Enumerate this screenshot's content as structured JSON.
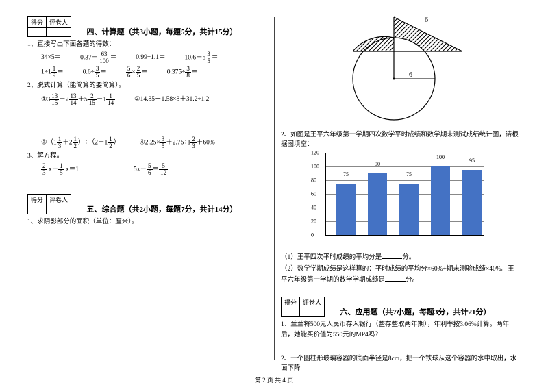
{
  "scorebox": {
    "c1": "得分",
    "c2": "评卷人"
  },
  "section4": {
    "title": "四、计算题（共3小题，每题5分，共计15分）",
    "q1": "1、直接写出下面各题的得数：",
    "row1": [
      "34×5＝",
      "0.37＋",
      "＝",
      "0.99÷1.1＝",
      "10.6－5",
      "＝"
    ],
    "row1_fracs": {
      "a_n": "63",
      "a_d": "100",
      "b_n": "3",
      "b_d": "5"
    },
    "row2": [
      "1÷1",
      "＝",
      "0.6÷",
      "＝",
      "×",
      "＝",
      "0.375÷",
      "＝"
    ],
    "row2_fracs": {
      "a_n": "1",
      "a_d": "9",
      "b_n": "3",
      "b_d": "5",
      "c1_n": "5",
      "c1_d": "6",
      "c2_n": "2",
      "c2_d": "5",
      "e_n": "3",
      "e_d": "8"
    },
    "q2": "2、脱式计算（能简算的要简算）。",
    "e21_label": "①3",
    "e21_f1_n": "13",
    "e21_f1_d": "15",
    "e21_mid": "－2",
    "e21_f2_n": "13",
    "e21_f2_d": "14",
    "e21_mid2": "＋5",
    "e21_f3_n": "2",
    "e21_f3_d": "15",
    "e21_mid3": "－1",
    "e21_f4_n": "1",
    "e21_f4_d": "14",
    "e22": "②14.85－1.58×8＋31.2÷1.2",
    "e23_label": "③（1",
    "e23_f1_n": "1",
    "e23_f1_d": "3",
    "e23_mid": "＋2",
    "e23_f2_n": "1",
    "e23_f2_d": "2",
    "e23_mid2": "）÷（2－1",
    "e23_f3_n": "1",
    "e23_f3_d": "2",
    "e23_end": "）",
    "e24_label": "④2.25×",
    "e24_f1_n": "3",
    "e24_f1_d": "5",
    "e24_mid": "＋2.75÷1",
    "e24_f2_n": "2",
    "e24_f2_d": "3",
    "e24_end": "＋60%",
    "q3": "3、解方程。",
    "eq1_f1_n": "2",
    "eq1_f1_d": "3",
    "eq1_mid": " x－",
    "eq1_f2_n": "1",
    "eq1_f2_d": "5",
    "eq1_end": " x＝1",
    "eq2_pre": "5x－",
    "eq2_f1_n": "5",
    "eq2_f1_d": "6",
    "eq2_mid": "＝",
    "eq2_f2_n": "5",
    "eq2_f2_d": "12"
  },
  "section5": {
    "title": "五、综合题（共2小题，每题7分，共计14分）",
    "q1": "1、求阴影部分的面积（单位：厘米）。",
    "geom": {
      "top_label": "6",
      "radius_label": "6"
    },
    "q2": "2、如图是王平六年级第一学期四次数学平时成绩和数学期末测试成绩统计图，请根据图填空：",
    "chart": {
      "type": "bar",
      "values": [
        75,
        90,
        75,
        100,
        95
      ],
      "ylim": [
        0,
        120
      ],
      "ytick_step": 20,
      "bar_color": "#4472c4",
      "grid_color": "#888888",
      "background": "#ffffff",
      "label_fontsize": 8
    },
    "sub1": "（1）王平四次平时成绩的平均分是",
    "sub1_end": "分。",
    "sub2": "（2）数学学期成绩是这样算的：平时成绩的平均分×60%+期末测验成绩×40%。王平六年级第一学期的数学学期成绩是",
    "sub2_end": "分。"
  },
  "section6": {
    "title": "六、应用题（共7小题，每题3分，共计21分）",
    "q1": "1、兰兰将500元人民币存入银行（整存整取两年期），年利率按3.06%计算。两年后，她能买价值为550元的MP4吗？",
    "q2": "2、一个圆柱形玻璃容器的底面半径是8cm，把一个铁球从这个容器的水中取出，水面下降"
  },
  "footer": "第 2 页 共 4 页"
}
